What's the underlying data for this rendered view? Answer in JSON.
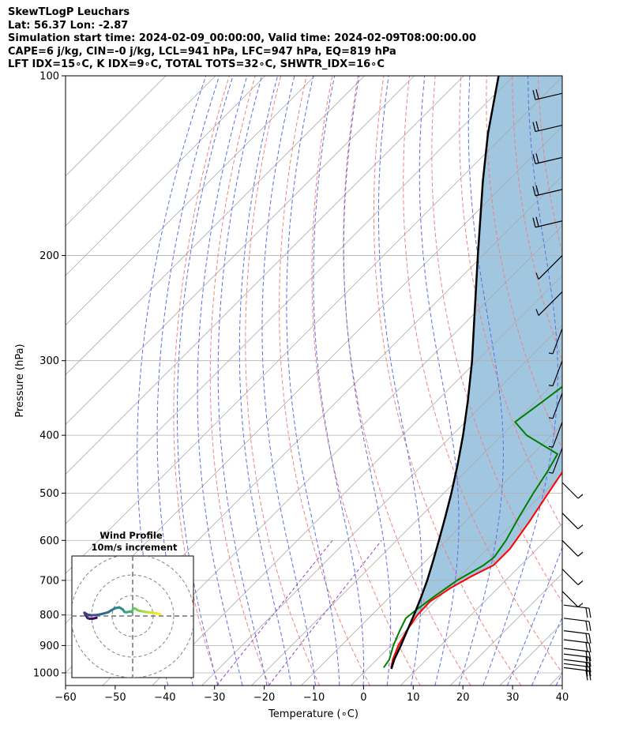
{
  "header": {
    "line1": "SkewTLogP Leuchars",
    "line2": "Lat: 56.37   Lon: -2.87",
    "line3": "Simulation start time: 2024-02-09_00:00:00, Valid time: 2024-02-09T08:00:00.00",
    "line4": "CAPE=6 j/kg, CIN=-0 j/kg, LCL=941 hPa, LFC=947 hPa, EQ=819 hPa",
    "line5": "LFT IDX=15∘C, K IDX=9∘C, TOTAL TOTS=32∘C, SHWTR_IDX=16∘C"
  },
  "chart_data": {
    "type": "line",
    "subtype": "skew-t log-p diagram",
    "xlabel": "Temperature (∘C)",
    "ylabel": "Pressure (hPa)",
    "xlim": [
      -60,
      40
    ],
    "ylim": [
      1050,
      100
    ],
    "yscale": "log",
    "x_ticks": [
      -60,
      -50,
      -40,
      -30,
      -20,
      -10,
      0,
      10,
      20,
      30,
      40
    ],
    "x_tick_labels": [
      "−60",
      "−50",
      "−40",
      "−30",
      "−20",
      "−10",
      "0",
      "10",
      "20",
      "30",
      "40"
    ],
    "y_ticks": [
      1000,
      900,
      800,
      700,
      600,
      500,
      400,
      300,
      200,
      100
    ],
    "y_tick_labels": [
      "1000",
      "900",
      "800",
      "700",
      "600",
      "500",
      "400",
      "300",
      "200",
      "100"
    ],
    "grid": true,
    "series": [
      {
        "role": "temperature",
        "color": "#ff0000",
        "points": [
          [
            980,
            4.5
          ],
          [
            950,
            3.2
          ],
          [
            900,
            1.5
          ],
          [
            850,
            0.2
          ],
          [
            800,
            -0.8
          ],
          [
            760,
            -1.0
          ],
          [
            720,
            0.5
          ],
          [
            690,
            2.2
          ],
          [
            660,
            4.5
          ],
          [
            620,
            4.5
          ],
          [
            560,
            3.0
          ],
          [
            500,
            1.0
          ],
          [
            450,
            -0.8
          ],
          [
            410,
            -2.5
          ],
          [
            350,
            -8.5
          ],
          [
            300,
            -13.5
          ],
          [
            250,
            -17.0
          ],
          [
            235,
            -16.5
          ],
          [
            225,
            -13.0
          ],
          [
            200,
            -11.5
          ],
          [
            175,
            -7.0
          ],
          [
            155,
            -3.5
          ],
          [
            140,
            0.5
          ],
          [
            125,
            3.5
          ],
          [
            112,
            5.5
          ],
          [
            100,
            6.5
          ]
        ]
      },
      {
        "role": "dewpoint",
        "color": "#008000",
        "points": [
          [
            980,
            3.0
          ],
          [
            950,
            2.5
          ],
          [
            900,
            0.5
          ],
          [
            850,
            -1.2
          ],
          [
            810,
            -2.5
          ],
          [
            780,
            -2.0
          ],
          [
            740,
            -1.0
          ],
          [
            700,
            0.2
          ],
          [
            660,
            2.5
          ],
          [
            640,
            3.0
          ],
          [
            600,
            2.0
          ],
          [
            550,
            0.0
          ],
          [
            500,
            -2.0
          ],
          [
            460,
            -3.5
          ],
          [
            430,
            -5.0
          ],
          [
            400,
            -15.0
          ],
          [
            380,
            -20.0
          ],
          [
            350,
            -18.5
          ],
          [
            320,
            -17.0
          ],
          [
            300,
            -17.5
          ],
          [
            260,
            -21.5
          ],
          [
            240,
            -23.0
          ],
          [
            225,
            -21.5
          ],
          [
            210,
            -23.0
          ],
          [
            200,
            -23.5
          ],
          [
            185,
            -25.0
          ],
          [
            172,
            -27.5
          ],
          [
            160,
            -26.5
          ],
          [
            135,
            -26.0
          ],
          [
            118,
            -27.0
          ],
          [
            100,
            -28.0
          ]
        ]
      },
      {
        "role": "parcel",
        "color": "#000000",
        "points": [
          [
            985,
            4.8
          ],
          [
            950,
            3.5
          ],
          [
            900,
            2.0
          ],
          [
            850,
            0.3
          ],
          [
            800,
            -1.5
          ],
          [
            750,
            -3.5
          ],
          [
            700,
            -5.8
          ],
          [
            650,
            -8.5
          ],
          [
            600,
            -11.5
          ],
          [
            550,
            -14.8
          ],
          [
            500,
            -18.5
          ],
          [
            450,
            -22.8
          ],
          [
            400,
            -27.8
          ],
          [
            350,
            -33.8
          ],
          [
            300,
            -41.0
          ],
          [
            250,
            -50.0
          ],
          [
            200,
            -61.0
          ],
          [
            150,
            -75.0
          ],
          [
            125,
            -83.5
          ],
          [
            100,
            -93.0
          ]
        ]
      }
    ],
    "cape_shading_color": "#a1c6e0",
    "background_lines": {
      "isotherm_color": "#aaaaaa",
      "dry_adiabat_color": "#f08080",
      "moist_adiabat_color": "#5a6fe6",
      "mixing_ratio_color": "#9040c0"
    },
    "wind_barbs": {
      "pressures": [
        980,
        965,
        950,
        930,
        910,
        880,
        850,
        810,
        770,
        730,
        670,
        600,
        540,
        480,
        420,
        380,
        340,
        300,
        265,
        230,
        200,
        175,
        155,
        137,
        121,
        107
      ],
      "speed_kt": [
        20,
        20,
        20,
        20,
        20,
        20,
        20,
        20,
        20,
        20,
        15,
        15,
        15,
        15,
        10,
        10,
        10,
        10,
        10,
        15,
        15,
        20,
        20,
        20,
        20,
        20
      ]
    },
    "inset": {
      "title": "Wind Profile",
      "subtitle": "10m/s increment",
      "type": "hodograph",
      "ring_count": 3,
      "points_uv": [
        [
          -17.6,
          -0.9
        ],
        [
          -19.5,
          -1.3
        ],
        [
          -21.0,
          -1.3
        ],
        [
          -22.0,
          -1.0
        ],
        [
          -23.0,
          0.5
        ],
        [
          -23.5,
          1.6
        ],
        [
          -22.0,
          0.7
        ],
        [
          -20.0,
          0.4
        ],
        [
          -17.5,
          0.5
        ],
        [
          -15.0,
          1.0
        ],
        [
          -12.0,
          1.8
        ],
        [
          -10.0,
          3.0
        ],
        [
          -8.5,
          3.8
        ],
        [
          -6.5,
          4.2
        ],
        [
          -4.8,
          3.2
        ],
        [
          -4.0,
          2.0
        ],
        [
          -3.0,
          1.8
        ],
        [
          -1.5,
          2.2
        ],
        [
          -0.5,
          2.0
        ],
        [
          0.0,
          3.0
        ],
        [
          0.3,
          3.8
        ],
        [
          1.5,
          3.5
        ],
        [
          2.5,
          2.8
        ],
        [
          4.0,
          2.4
        ],
        [
          6.0,
          2.0
        ],
        [
          8.0,
          1.8
        ],
        [
          10.0,
          1.5
        ],
        [
          12.0,
          1.3
        ],
        [
          13.5,
          0.8
        ]
      ]
    }
  }
}
